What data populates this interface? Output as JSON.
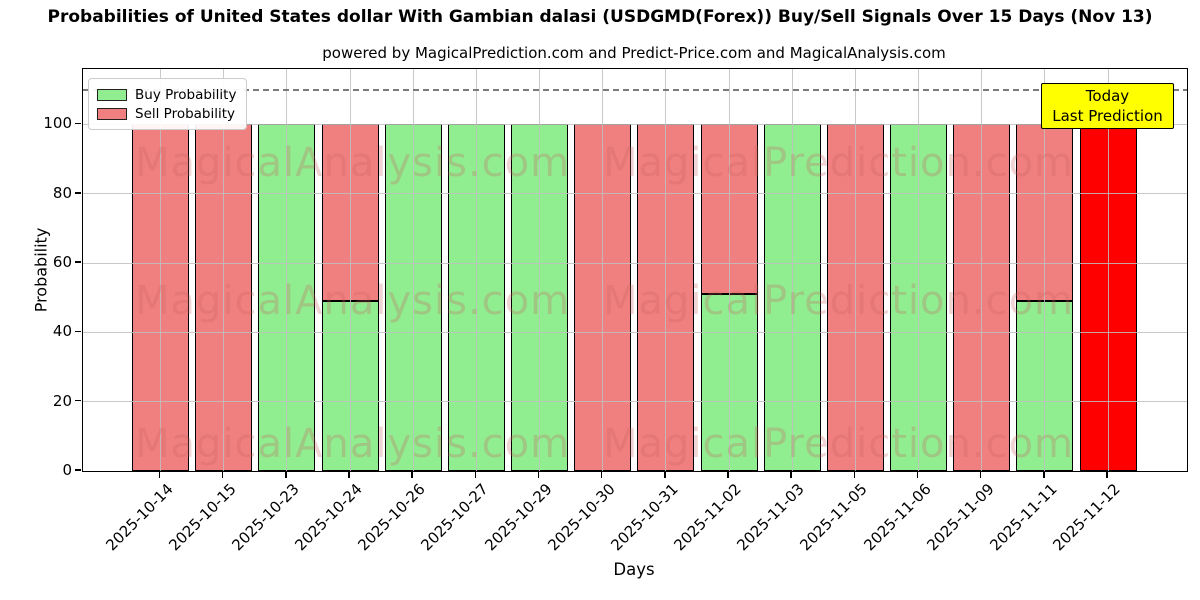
{
  "figure": {
    "title": "Probabilities of United States dollar With Gambian dalasi (USDGMD(Forex)) Buy/Sell Signals Over 15 Days (Nov 13)",
    "subtitle": "powered by MagicalPrediction.com and Predict-Price.com and MagicalAnalysis.com"
  },
  "chart_data": {
    "type": "bar",
    "stacked": true,
    "title": "Probabilities of United States dollar With Gambian dalasi (USDGMD(Forex)) Buy/Sell Signals Over 15 Days (Nov 13)",
    "subtitle": "powered by MagicalPrediction.com and Predict-Price.com and MagicalAnalysis.com",
    "categories": [
      "2025-10-14",
      "2025-10-15",
      "2025-10-23",
      "2025-10-24",
      "2025-10-26",
      "2025-10-27",
      "2025-10-29",
      "2025-10-30",
      "2025-10-31",
      "2025-11-02",
      "2025-11-03",
      "2025-11-05",
      "2025-11-06",
      "2025-11-09",
      "2025-11-11",
      "2025-11-12"
    ],
    "series": [
      {
        "name": "Buy Probability",
        "color": "#90ee90",
        "values": [
          0,
          0,
          100,
          49,
          100,
          100,
          100,
          0,
          0,
          51,
          100,
          0,
          100,
          0,
          49,
          0
        ]
      },
      {
        "name": "Sell Probability",
        "color": "#f08080",
        "values": [
          100,
          100,
          0,
          51,
          0,
          0,
          0,
          100,
          100,
          49,
          0,
          100,
          0,
          100,
          51,
          100
        ]
      }
    ],
    "highlight": {
      "index": 15,
      "sell_color": "#ff0000"
    },
    "xlabel": "Days",
    "ylabel": "Probability",
    "yticks": [
      0,
      20,
      40,
      60,
      80,
      100
    ],
    "ylim": [
      0,
      116
    ],
    "dashed_line_y": 110,
    "grid": true,
    "legend": {
      "position": "upper-left",
      "entries": [
        "Buy Probability",
        "Sell Probability"
      ]
    },
    "bar_edge_color": "#000000"
  },
  "annotation": {
    "line1": "Today",
    "line2": "Last Prediction",
    "bg_color": "#ffff00"
  },
  "watermarks": {
    "left_text": "MagicalAnalysis.com",
    "right_text": "MagicalPrediction.com"
  }
}
